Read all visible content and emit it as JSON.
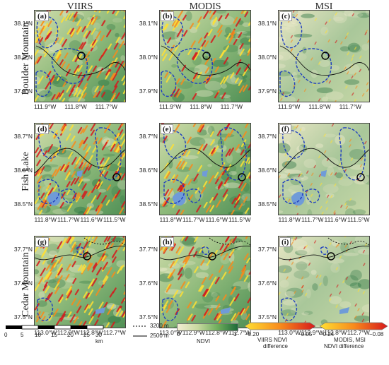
{
  "columns": [
    "VIIRS",
    "MODIS",
    "MSI"
  ],
  "rows": [
    {
      "name": "Boulder Mountain",
      "panels": [
        "(a)",
        "(b)",
        "(c)"
      ],
      "y_ticks": [
        "38.1°N",
        "38.0°N",
        "37.9°N"
      ],
      "x_ticks": [
        "111.9°W",
        "111.8°W",
        "111.7°W"
      ]
    },
    {
      "name": "Fish Lake",
      "panels": [
        "(d)",
        "(e)",
        "(f)"
      ],
      "y_ticks": [
        "38.7°N",
        "38.6°N",
        "38.5°N"
      ],
      "x_ticks": [
        "111.8°W",
        "111.7°W",
        "111.6°W",
        "111.5°W"
      ]
    },
    {
      "name": "Cedar Mountain",
      "panels": [
        "(g)",
        "(h)",
        "(i)"
      ],
      "y_ticks": [
        "37.7°N",
        "37.6°N",
        "37.5°N"
      ],
      "x_ticks": [
        "113.0°W",
        "112.9°W",
        "112.8°W",
        "112.7°W"
      ]
    }
  ],
  "legend": {
    "scalebar_ticks": [
      "0",
      "5",
      "10",
      "15",
      "20",
      "25",
      "30 km"
    ],
    "contour_3200": "3200 m",
    "contour_2500": "2500 m",
    "ndvi_label": "NDVI",
    "ndvi_min": "0",
    "ndvi_max": "1",
    "viirs_min": "−0.20",
    "viirs_max": "−0.05",
    "viirs_title": "VIIRS NDVI",
    "viirs_title2": "difference",
    "modis_min": "−0.24",
    "modis_max": "−0.08",
    "modis_title": "MODIS, MSI",
    "modis_title2": "NDVI difference"
  },
  "colors": {
    "ndvi_low": "#f3edd2",
    "ndvi_high": "#1e6b3a",
    "diff_low": "#ffe033",
    "diff_high": "#d7191c",
    "burn_outline": "#1f3fbf",
    "contour": "#111111",
    "water": "#6f9bd8"
  }
}
